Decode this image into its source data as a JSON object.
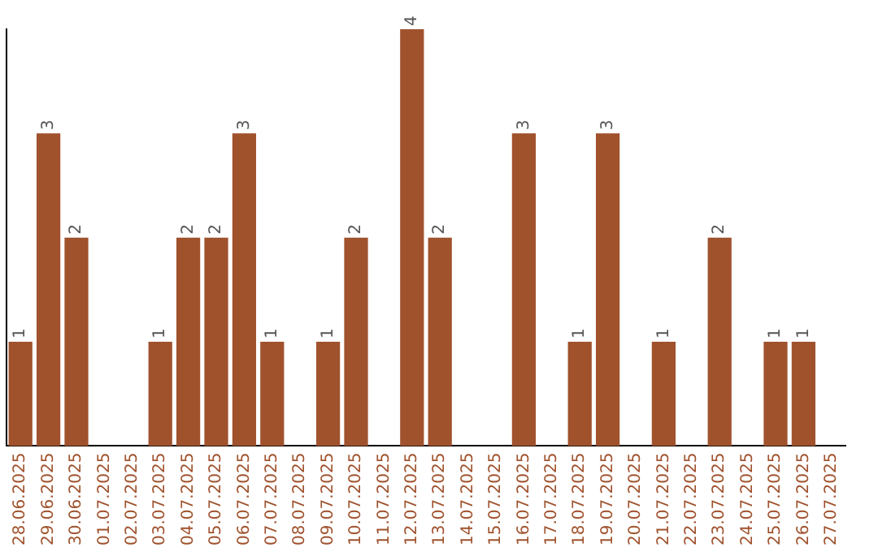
{
  "chart_data": {
    "type": "bar",
    "categories": [
      "28.06.2025",
      "29.06.2025",
      "30.06.2025",
      "01.07.2025",
      "02.07.2025",
      "03.07.2025",
      "04.07.2025",
      "05.07.2025",
      "06.07.2025",
      "07.07.2025",
      "08.07.2025",
      "09.07.2025",
      "10.07.2025",
      "11.07.2025",
      "12.07.2025",
      "13.07.2025",
      "14.07.2025",
      "15.07.2025",
      "16.07.2025",
      "17.07.2025",
      "18.07.2025",
      "19.07.2025",
      "20.07.2025",
      "21.07.2025",
      "22.07.2025",
      "23.07.2025",
      "24.07.2025",
      "25.07.2025",
      "26.07.2025",
      "27.07.2025"
    ],
    "values": [
      1,
      3,
      2,
      0,
      0,
      1,
      2,
      2,
      3,
      1,
      0,
      1,
      2,
      0,
      4,
      2,
      0,
      0,
      3,
      0,
      1,
      3,
      0,
      1,
      0,
      2,
      0,
      1,
      1,
      0
    ],
    "value_labels": [
      "1",
      "3",
      "2",
      null,
      null,
      "1",
      "2",
      "2",
      "3",
      "1",
      null,
      "1",
      "2",
      null,
      "4",
      "2",
      null,
      null,
      "3",
      null,
      "1",
      "3",
      null,
      "1",
      null,
      "2",
      null,
      "1",
      "1",
      null
    ],
    "color": "#a0522d",
    "grid": false,
    "legend": false,
    "tick_labels": "x"
  }
}
